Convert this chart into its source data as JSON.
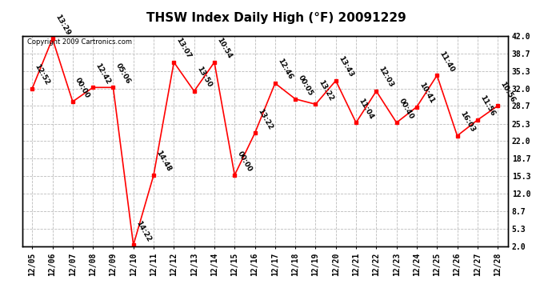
{
  "title": "THSW Index Daily High (°F) 20091229",
  "copyright_text": "Copyright 2009 Cartronics.com",
  "dates": [
    "12/05",
    "12/06",
    "12/07",
    "12/08",
    "12/09",
    "12/10",
    "12/11",
    "12/12",
    "12/13",
    "12/14",
    "12/15",
    "12/16",
    "12/17",
    "12/18",
    "12/19",
    "12/20",
    "12/21",
    "12/22",
    "12/23",
    "12/24",
    "12/25",
    "12/26",
    "12/27",
    "12/28"
  ],
  "values": [
    32.0,
    41.5,
    29.5,
    32.2,
    32.2,
    2.2,
    15.5,
    37.0,
    31.5,
    37.0,
    15.5,
    23.5,
    33.0,
    30.0,
    29.0,
    33.5,
    25.5,
    31.5,
    25.5,
    28.5,
    34.5,
    23.0,
    26.0,
    28.7
  ],
  "time_labels": [
    "12:52",
    "13:29",
    "00:00",
    "12:42",
    "05:06",
    "14:22",
    "14:48",
    "13:07",
    "13:50",
    "10:54",
    "00:00",
    "13:22",
    "12:46",
    "00:05",
    "13:22",
    "13:43",
    "11:04",
    "12:03",
    "00:40",
    "10:41",
    "11:40",
    "16:03",
    "11:56",
    "10:56"
  ],
  "yticks": [
    2.0,
    5.3,
    8.7,
    12.0,
    15.3,
    18.7,
    22.0,
    25.3,
    28.7,
    32.0,
    35.3,
    38.7,
    42.0
  ],
  "ylim": [
    2.0,
    42.0
  ],
  "line_color": "#ff0000",
  "marker_color": "#ff0000",
  "bg_color": "#ffffff",
  "grid_color": "#bbbbbb",
  "title_fontsize": 11,
  "tick_fontsize": 7,
  "annot_fontsize": 6.5
}
